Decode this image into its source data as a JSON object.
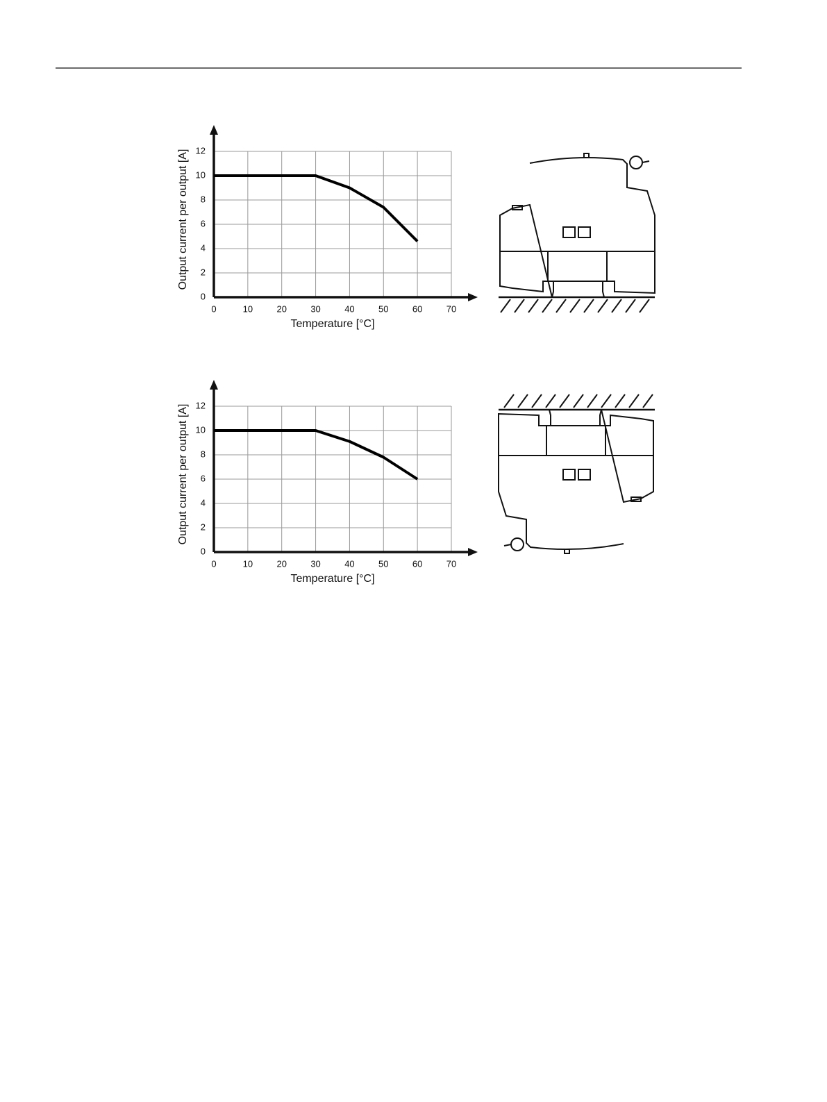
{
  "chart_data": [
    {
      "type": "line",
      "x_label": "Temperature [°C]",
      "y_label": "Output current per output [A]",
      "x": [
        0,
        30,
        40,
        50,
        60
      ],
      "values": [
        10,
        10,
        9,
        7.4,
        4.6
      ],
      "color": "#000000",
      "xlim": [
        0,
        70
      ],
      "ylim": [
        0,
        12
      ],
      "xticks": [
        0,
        10,
        20,
        30,
        40,
        50,
        60,
        70
      ],
      "yticks": [
        0,
        2,
        4,
        6,
        8,
        10,
        12
      ],
      "grid": true
    },
    {
      "type": "line",
      "x_label": "Temperature [°C]",
      "y_label": "Output current per output [A]",
      "x": [
        0,
        30,
        40,
        50,
        60
      ],
      "values": [
        10,
        10,
        9.1,
        7.8,
        6
      ],
      "color": "#000000",
      "xlim": [
        0,
        70
      ],
      "ylim": [
        0,
        12
      ],
      "xticks": [
        0,
        10,
        20,
        30,
        40,
        50,
        60,
        70
      ],
      "yticks": [
        0,
        2,
        4,
        6,
        8,
        10,
        12
      ],
      "grid": true
    }
  ]
}
